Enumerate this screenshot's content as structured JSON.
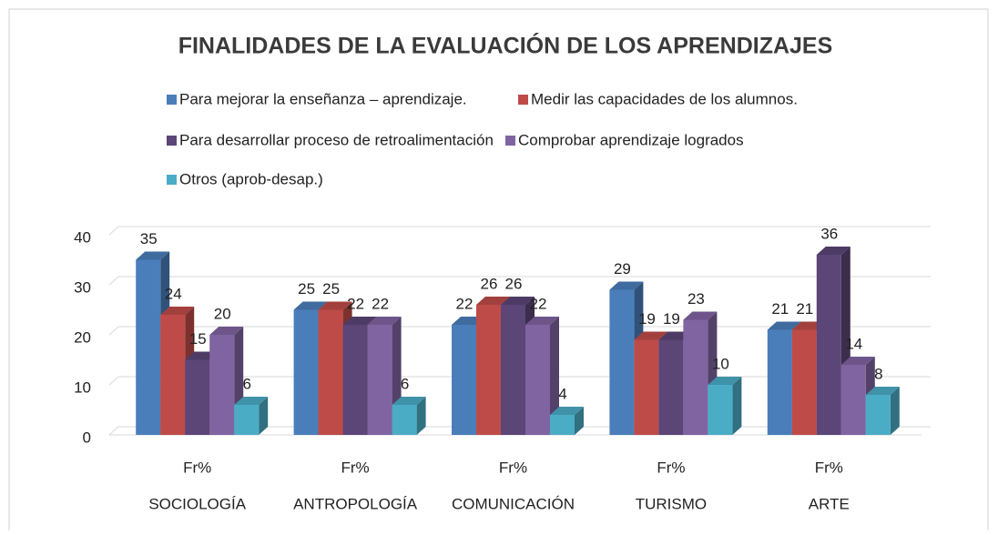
{
  "chart_data": {
    "type": "bar3d",
    "title": "FINALIDADES DE LA EVALUACIÓN DE LOS APRENDIZAJES",
    "categories": [
      "SOCIOLOGÍA",
      "ANTROPOLOGÍA",
      "COMUNICACIÓN",
      "TURISMO",
      "ARTE"
    ],
    "subcategories": [
      "Fr%",
      "Fr%",
      "Fr%",
      "Fr%",
      "Fr%"
    ],
    "series": [
      {
        "name": "Para mejorar la enseñanza – aprendizaje.",
        "color": "#4a7ebb",
        "values": [
          35,
          25,
          22,
          29,
          21
        ]
      },
      {
        "name": "Medir las capacidades de los alumnos.",
        "color": "#be4b48",
        "values": [
          24,
          25,
          26,
          19,
          21
        ]
      },
      {
        "name": "Para desarrollar proceso de retroalimentación",
        "color": "#5c4577",
        "values": [
          15,
          22,
          26,
          19,
          36
        ]
      },
      {
        "name": "Comprobar aprendizaje logrados",
        "color": "#8064a2",
        "values": [
          20,
          22,
          22,
          23,
          14
        ]
      },
      {
        "name": "Otros (aprob-desap.)",
        "color": "#4bacc6",
        "values": [
          6,
          6,
          4,
          10,
          8
        ]
      }
    ],
    "ylim": [
      0,
      40
    ],
    "yticks": [
      0,
      10,
      20,
      30,
      40
    ],
    "grid": true
  }
}
